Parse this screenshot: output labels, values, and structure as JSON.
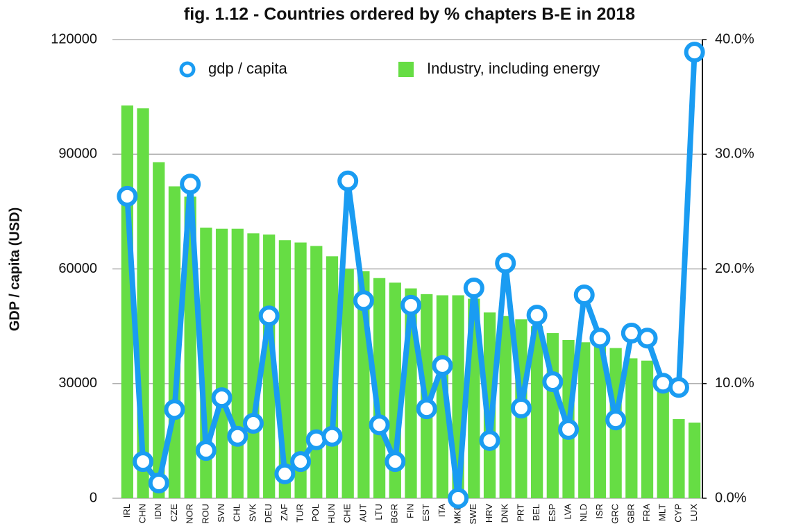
{
  "chart_data": {
    "type": "bar-line",
    "title": "fig. 1.12 - Countries ordered by % chapters B-E in 2018",
    "y_label": "GDP / capita (USD)",
    "categories": [
      "IRL",
      "CHN",
      "IDN",
      "CZE",
      "NOR",
      "ROU",
      "SVN",
      "CHL",
      "SVK",
      "DEU",
      "ZAF",
      "TUR",
      "POL",
      "HUN",
      "CHE",
      "AUT",
      "LTU",
      "BGR",
      "FIN",
      "EST",
      "ITA",
      "MKD",
      "SWE",
      "HRV",
      "DNK",
      "PRT",
      "BEL",
      "ESP",
      "LVA",
      "NLD",
      "ISR",
      "GRC",
      "GBR",
      "FRA",
      "MLT",
      "CYP",
      "LUX"
    ],
    "series": [
      {
        "name": "gdp / capita",
        "type": "line",
        "color": "#1a9cf2",
        "axis": "y",
        "values": [
          79000,
          9600,
          4000,
          23200,
          82200,
          12500,
          26300,
          16200,
          19600,
          47700,
          6400,
          9600,
          15300,
          16200,
          83000,
          51700,
          19200,
          9600,
          50500,
          23400,
          34700,
          0,
          55000,
          15100,
          61500,
          23600,
          47900,
          30500,
          18000,
          53200,
          41900,
          20500,
          43200,
          41900,
          30100,
          29000,
          116700
        ]
      },
      {
        "name": "Industry, including energy",
        "type": "bar",
        "color": "#66dd44",
        "axis": "y2",
        "values": [
          34.25,
          34.0,
          29.3,
          27.2,
          26.3,
          23.6,
          23.5,
          23.5,
          23.1,
          23.0,
          22.5,
          22.3,
          22.0,
          21.1,
          20.0,
          19.8,
          19.2,
          18.8,
          18.3,
          17.8,
          17.7,
          17.7,
          17.4,
          16.2,
          15.9,
          15.6,
          15.0,
          14.4,
          13.8,
          13.6,
          13.4,
          13.1,
          12.2,
          12.0,
          9.3,
          6.9,
          6.6
        ]
      }
    ],
    "ylim": [
      0,
      120000
    ],
    "yticks": [
      0,
      30000,
      60000,
      90000,
      120000
    ],
    "y2lim": [
      0,
      40
    ],
    "y2ticks": [
      {
        "value": 0,
        "label": "0.0%"
      },
      {
        "value": 10,
        "label": "10.0%"
      },
      {
        "value": 20,
        "label": "20.0%"
      },
      {
        "value": 30,
        "label": "30.0%"
      },
      {
        "value": 40,
        "label": "40.0%"
      }
    ],
    "grid": true,
    "legend": "top"
  }
}
